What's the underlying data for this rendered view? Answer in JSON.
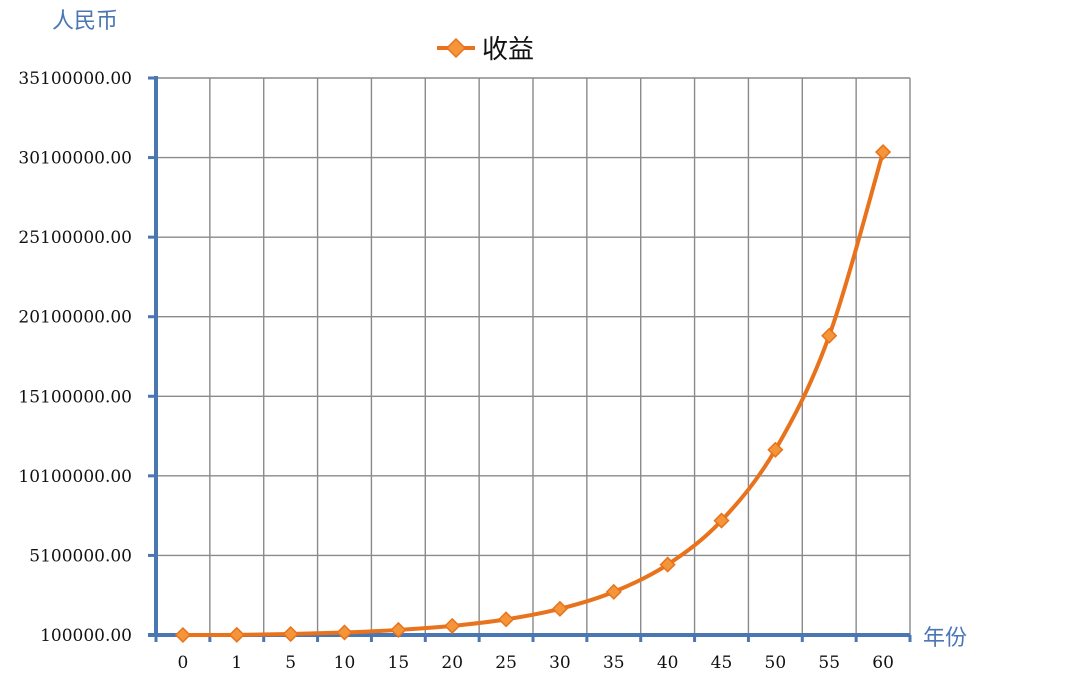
{
  "chart_data": {
    "type": "line",
    "ylabel": "人民币",
    "xlabel": "年份",
    "categories": [
      "0",
      "1",
      "5",
      "10",
      "15",
      "20",
      "25",
      "30",
      "35",
      "40",
      "45",
      "50",
      "55",
      "60"
    ],
    "series": [
      {
        "name": "收益",
        "values": [
          100000,
          110000,
          161000,
          259000,
          418000,
          673000,
          1083000,
          1745000,
          2810000,
          4526000,
          7289000,
          11739000,
          18905000,
          30448000
        ],
        "color": "#e8731c",
        "marker": "diamond"
      }
    ],
    "y_ticks": [
      "100000.00",
      "5100000.00",
      "10100000.00",
      "15100000.00",
      "20100000.00",
      "25100000.00",
      "30100000.00",
      "35100000.00"
    ],
    "ylim": [
      100000,
      35100000
    ],
    "grid": true,
    "legend_position": "top-center",
    "axis_color": "#4a76b4",
    "grid_color": "#8a8a8a"
  }
}
